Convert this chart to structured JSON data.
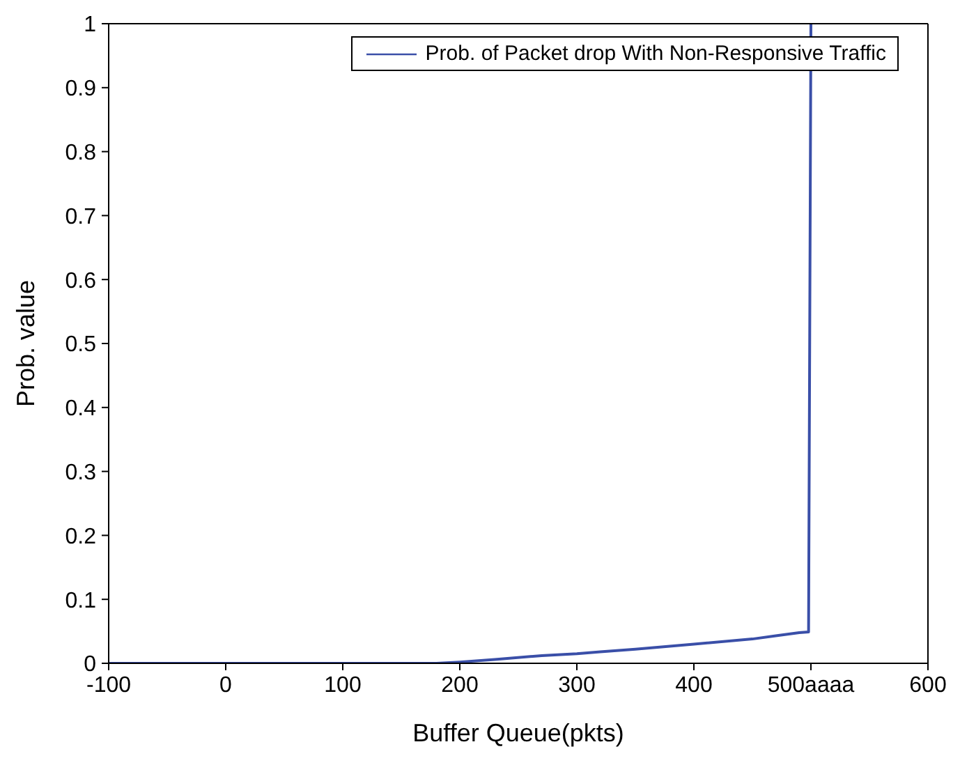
{
  "chart_data": {
    "type": "line",
    "xlabel": "Buffer Queue(pkts)",
    "ylabel": "Prob. value",
    "xlim": [
      -100,
      600
    ],
    "xticks": [
      -100,
      0,
      100,
      200,
      300,
      400,
      {
        "value": 500,
        "label": "500aaaa"
      },
      600
    ],
    "ylim": [
      0,
      1
    ],
    "yticks": [
      0,
      0.1,
      0.2,
      0.3,
      0.4,
      0.5,
      0.6,
      0.7,
      0.8,
      0.9,
      1
    ],
    "grid": false,
    "legend": "top right",
    "marker": "none",
    "line_style": "solid",
    "series": [
      {
        "name": "Prob. of Packet drop With Non-Responsive Traffic",
        "color": "#3a4fa8",
        "x": [
          -100,
          0,
          100,
          180,
          200,
          230,
          270,
          300,
          320,
          350,
          400,
          450,
          470,
          490,
          498,
          500
        ],
        "values": [
          0,
          0,
          0,
          0,
          0.002,
          0.006,
          0.012,
          0.015,
          0.018,
          0.022,
          0.03,
          0.038,
          0.043,
          0.048,
          0.049,
          1
        ]
      }
    ]
  }
}
